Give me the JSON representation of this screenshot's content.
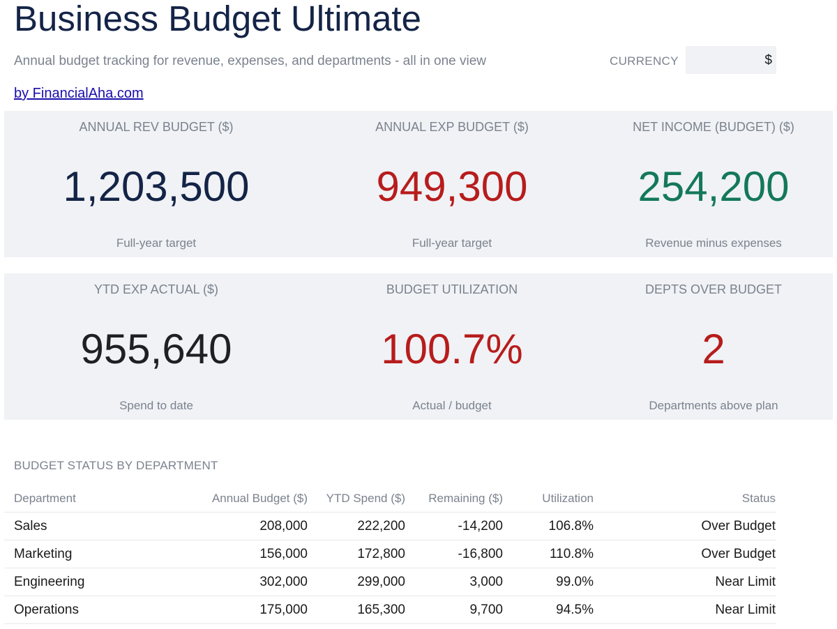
{
  "header": {
    "title": "Business Budget Ultimate",
    "subtitle": "Annual budget tracking for revenue, expenses, and departments - all in one view",
    "byline": "by FinancialAha.com",
    "currency_label": "CURRENCY",
    "currency_value": "$"
  },
  "colors": {
    "navy": "#142447",
    "red": "#b71c1c",
    "green": "#14785a",
    "dark": "#1f1f24",
    "muted": "#7b828e",
    "band": "#f0f2f5"
  },
  "kpis_row1": [
    {
      "label": "ANNUAL REV BUDGET ($)",
      "value": "1,203,500",
      "note": "Full-year target",
      "color": "#142447"
    },
    {
      "label": "ANNUAL EXP BUDGET ($)",
      "value": "949,300",
      "note": "Full-year target",
      "color": "#b71c1c"
    },
    {
      "label": "NET INCOME (BUDGET) ($)",
      "value": "254,200",
      "note": "Revenue minus expenses",
      "color": "#14785a"
    }
  ],
  "kpis_row2": [
    {
      "label": "YTD EXP ACTUAL ($)",
      "value": "955,640",
      "note": "Spend to date",
      "color": "#1f1f24"
    },
    {
      "label": "BUDGET UTILIZATION",
      "value": "100.7%",
      "note": "Actual / budget",
      "color": "#b71c1c"
    },
    {
      "label": "DEPTS OVER BUDGET",
      "value": "2",
      "note": "Departments above plan",
      "color": "#b71c1c"
    }
  ],
  "department_table": {
    "section_title": "BUDGET STATUS BY DEPARTMENT",
    "columns": [
      "Department",
      "Annual Budget ($)",
      "YTD Spend ($)",
      "Remaining ($)",
      "Utilization",
      "Status"
    ],
    "rows": [
      [
        "Sales",
        "208,000",
        "222,200",
        "-14,200",
        "106.8%",
        "Over Budget"
      ],
      [
        "Marketing",
        "156,000",
        "172,800",
        "-16,800",
        "110.8%",
        "Over Budget"
      ],
      [
        "Engineering",
        "302,000",
        "299,000",
        "3,000",
        "99.0%",
        "Near Limit"
      ],
      [
        "Operations",
        "175,000",
        "165,300",
        "9,700",
        "94.5%",
        "Near Limit"
      ]
    ]
  }
}
